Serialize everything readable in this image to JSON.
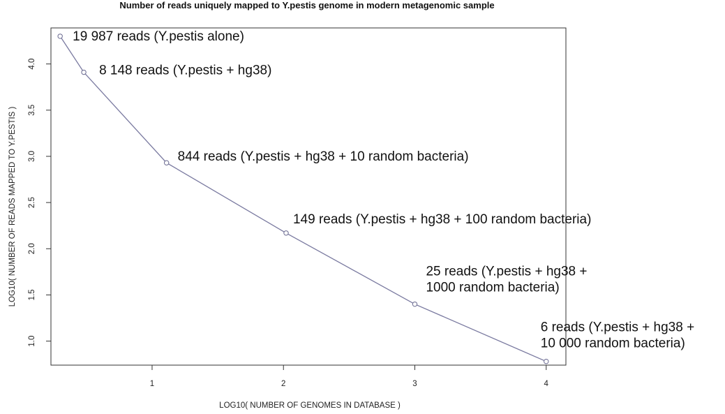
{
  "chart_data": {
    "type": "line",
    "title": "Number of reads uniquely mapped to Y.pestis genome in modern metagenomic sample",
    "xlabel": "LOG10( NUMBER OF GENOMES IN DATABASE )",
    "ylabel": "LOG10( NUMBER OF READS MAPPED TO Y.PESTIS )",
    "xlim": [
      0.23,
      4.15
    ],
    "ylim": [
      0.74,
      4.39
    ],
    "x_ticks": [
      1,
      2,
      3,
      4
    ],
    "y_ticks": [
      1.0,
      1.5,
      2.0,
      2.5,
      3.0,
      3.5,
      4.0
    ],
    "x_tick_labels": [
      "1",
      "2",
      "3",
      "4"
    ],
    "y_tick_labels": [
      "1.0",
      "1.5",
      "2.0",
      "2.5",
      "3.0",
      "3.5",
      "4.0"
    ],
    "grid": false,
    "series": [
      {
        "points": [
          {
            "x": 0.3,
            "y": 4.3
          },
          {
            "x": 0.48,
            "y": 3.91
          },
          {
            "x": 1.11,
            "y": 2.93
          },
          {
            "x": 2.02,
            "y": 2.17
          },
          {
            "x": 3.0,
            "y": 1.4
          },
          {
            "x": 4.0,
            "y": 0.78
          }
        ]
      }
    ],
    "annotations": [
      {
        "lines": [
          "19 987 reads (Y.pestis alone)"
        ]
      },
      {
        "lines": [
          "8 148 reads (Y.pestis + hg38)"
        ]
      },
      {
        "lines": [
          "844 reads (Y.pestis + hg38 + 10 random bacteria)"
        ]
      },
      {
        "lines": [
          "149 reads (Y.pestis + hg38 + 100 random bacteria)"
        ]
      },
      {
        "lines": [
          "25 reads (Y.pestis + hg38 +",
          "1000 random bacteria)"
        ]
      },
      {
        "lines": [
          "6 reads (Y.pestis + hg38 +",
          "10 000 random bacteria)"
        ]
      }
    ],
    "colors": {
      "line": "#7a7aa0",
      "marker": "#6a6a90",
      "axes": "#333333"
    }
  }
}
